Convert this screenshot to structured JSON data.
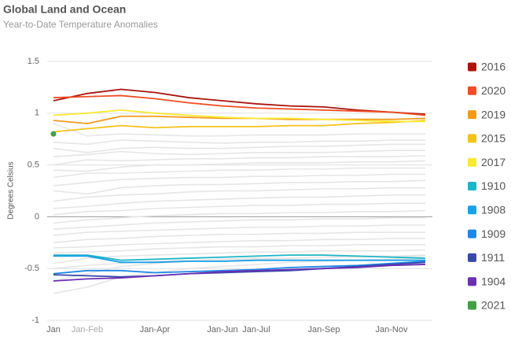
{
  "chart_data": {
    "type": "line",
    "title": "Global Land and Ocean",
    "subtitle": "Year-to-Date Temperature Anomalies",
    "y_label": "Degrees Celsius",
    "categories": [
      "Jan",
      "Jan-Feb",
      null,
      "Jan-Apr",
      null,
      "Jan-Jun",
      "Jan-Jul",
      null,
      "Jan-Sep",
      null,
      "Jan-Nov",
      null
    ],
    "ylim": [
      -1,
      1.5
    ],
    "yticks": [
      -1,
      -0.5,
      0,
      0.5,
      1,
      1.5
    ],
    "grid": true,
    "legend": "right",
    "background_color": "#e6e6e6",
    "background_series": [
      [
        0.72,
        0.7,
        0.74,
        0.73,
        0.72,
        0.71,
        0.72,
        0.72,
        0.73,
        0.73,
        0.74,
        0.74
      ],
      [
        0.66,
        0.62,
        0.66,
        0.67,
        0.66,
        0.66,
        0.67,
        0.68,
        0.68,
        0.69,
        0.7,
        0.7
      ],
      [
        0.58,
        0.6,
        0.63,
        0.61,
        0.6,
        0.61,
        0.62,
        0.62,
        0.62,
        0.63,
        0.64,
        0.64
      ],
      [
        0.5,
        0.55,
        0.54,
        0.55,
        0.56,
        0.56,
        0.57,
        0.57,
        0.58,
        0.58,
        0.58,
        0.59
      ],
      [
        0.45,
        0.44,
        0.48,
        0.5,
        0.5,
        0.51,
        0.52,
        0.52,
        0.52,
        0.53,
        0.53,
        0.54
      ],
      [
        0.38,
        0.42,
        0.42,
        0.43,
        0.44,
        0.45,
        0.45,
        0.46,
        0.46,
        0.47,
        0.47,
        0.47
      ],
      [
        0.3,
        0.33,
        0.36,
        0.37,
        0.38,
        0.38,
        0.39,
        0.39,
        0.4,
        0.4,
        0.41,
        0.41
      ],
      [
        0.25,
        0.22,
        0.28,
        0.3,
        0.31,
        0.31,
        0.32,
        0.33,
        0.33,
        0.34,
        0.34,
        0.35
      ],
      [
        0.15,
        0.19,
        0.21,
        0.22,
        0.24,
        0.25,
        0.25,
        0.26,
        0.27,
        0.27,
        0.28,
        0.28
      ],
      [
        0.08,
        0.1,
        0.13,
        0.15,
        0.16,
        0.17,
        0.18,
        0.19,
        0.19,
        0.2,
        0.21,
        0.21
      ],
      [
        0.02,
        0.05,
        0.06,
        0.08,
        0.09,
        0.1,
        0.11,
        0.11,
        0.12,
        0.12,
        0.13,
        0.13
      ],
      [
        -0.06,
        -0.03,
        -0.01,
        0.01,
        0.02,
        0.03,
        0.03,
        0.04,
        0.04,
        0.05,
        0.05,
        0.06
      ],
      [
        -0.12,
        -0.1,
        -0.08,
        -0.06,
        -0.05,
        -0.04,
        -0.03,
        -0.03,
        -0.02,
        -0.02,
        -0.01,
        -0.01
      ],
      [
        -0.18,
        -0.15,
        -0.14,
        -0.13,
        -0.12,
        -0.11,
        -0.1,
        -0.1,
        -0.09,
        -0.09,
        -0.08,
        -0.08
      ],
      [
        -0.25,
        -0.22,
        -0.21,
        -0.19,
        -0.18,
        -0.17,
        -0.17,
        -0.16,
        -0.16,
        -0.15,
        -0.15,
        -0.15
      ],
      [
        -0.3,
        -0.29,
        -0.27,
        -0.26,
        -0.25,
        -0.24,
        -0.23,
        -0.23,
        -0.22,
        -0.22,
        -0.21,
        -0.21
      ],
      [
        -0.35,
        -0.34,
        -0.33,
        -0.31,
        -0.3,
        -0.29,
        -0.29,
        -0.28,
        -0.28,
        -0.27,
        -0.27,
        -0.27
      ],
      [
        -0.45,
        -0.4,
        -0.38,
        -0.37,
        -0.36,
        -0.35,
        -0.34,
        -0.34,
        -0.33,
        -0.33,
        -0.33,
        -0.32
      ],
      [
        -0.62,
        -0.55,
        -0.48,
        -0.45,
        -0.43,
        -0.42,
        -0.41,
        -0.4,
        -0.39,
        -0.38,
        -0.38,
        -0.37
      ],
      [
        -0.74,
        -0.68,
        -0.58,
        -0.54,
        -0.5,
        -0.48,
        -0.46,
        -0.44,
        -0.43,
        -0.42,
        -0.41,
        -0.4
      ],
      [
        0.9,
        0.78,
        0.8,
        0.79,
        0.78,
        0.78,
        0.79,
        0.79,
        0.79,
        0.8,
        0.8,
        0.8
      ],
      [
        -0.5,
        -0.47,
        -0.45,
        -0.43,
        -0.42,
        -0.41,
        -0.4,
        -0.4,
        -0.39,
        -0.39,
        -0.38,
        -0.38
      ]
    ],
    "series": [
      {
        "name": "2016",
        "color": "#a9150c",
        "values": [
          1.12,
          1.19,
          1.23,
          1.2,
          1.15,
          1.12,
          1.09,
          1.07,
          1.06,
          1.03,
          1.01,
          0.99
        ]
      },
      {
        "name": "2020",
        "color": "#f04e23",
        "values": [
          1.15,
          1.16,
          1.17,
          1.14,
          1.1,
          1.07,
          1.05,
          1.04,
          1.03,
          1.02,
          1.01,
          0.98
        ]
      },
      {
        "name": "2019",
        "color": "#f39a1d",
        "values": [
          0.93,
          0.9,
          0.97,
          0.97,
          0.96,
          0.95,
          0.95,
          0.94,
          0.94,
          0.94,
          0.94,
          0.95
        ]
      },
      {
        "name": "2015",
        "color": "#f5c21b",
        "values": [
          0.82,
          0.85,
          0.88,
          0.86,
          0.87,
          0.87,
          0.87,
          0.88,
          0.88,
          0.9,
          0.91,
          0.93
        ]
      },
      {
        "name": "2017",
        "color": "#f9e933",
        "values": [
          0.98,
          1.0,
          1.03,
          1.0,
          0.98,
          0.96,
          0.95,
          0.95,
          0.94,
          0.93,
          0.92,
          0.92
        ]
      },
      {
        "name": "1910",
        "color": "#1eb5c8",
        "values": [
          -0.37,
          -0.37,
          -0.42,
          -0.41,
          -0.4,
          -0.39,
          -0.38,
          -0.37,
          -0.37,
          -0.38,
          -0.39,
          -0.4
        ]
      },
      {
        "name": "1908",
        "color": "#1aa0e8",
        "values": [
          -0.38,
          -0.38,
          -0.44,
          -0.44,
          -0.43,
          -0.43,
          -0.42,
          -0.42,
          -0.42,
          -0.42,
          -0.42,
          -0.42
        ]
      },
      {
        "name": "1909",
        "color": "#1e88e5",
        "values": [
          -0.55,
          -0.52,
          -0.52,
          -0.54,
          -0.53,
          -0.52,
          -0.51,
          -0.49,
          -0.48,
          -0.47,
          -0.45,
          -0.43
        ]
      },
      {
        "name": "1911",
        "color": "#3949ab",
        "values": [
          -0.56,
          -0.57,
          -0.58,
          -0.57,
          -0.55,
          -0.54,
          -0.53,
          -0.52,
          -0.5,
          -0.48,
          -0.46,
          -0.44
        ]
      },
      {
        "name": "1904",
        "color": "#6a2fb5",
        "values": [
          -0.62,
          -0.6,
          -0.59,
          -0.57,
          -0.55,
          -0.53,
          -0.52,
          -0.51,
          -0.5,
          -0.49,
          -0.47,
          -0.46
        ]
      },
      {
        "name": "2021",
        "color": "#43a047",
        "values": [
          0.8,
          null,
          null,
          null,
          null,
          null,
          null,
          null,
          null,
          null,
          null,
          null
        ]
      }
    ]
  }
}
